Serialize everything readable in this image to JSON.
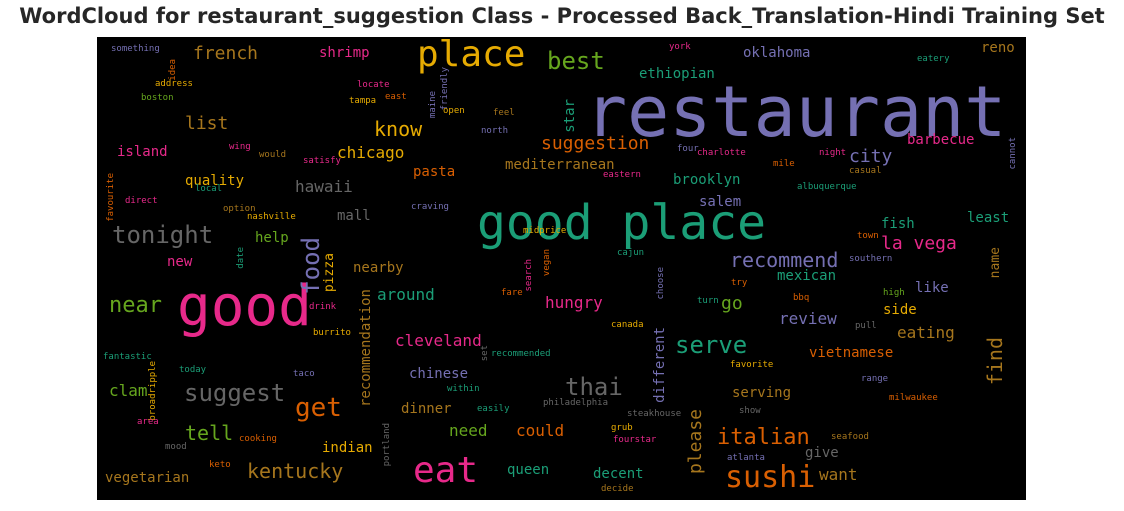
{
  "title": "WordCloud for restaurant_suggestion Class - Processed Back_Translation-Hindi Training Set",
  "colors": {
    "background": "#000000",
    "purple": "#7570b3",
    "teal": "#1b9e77",
    "pink": "#e7298a",
    "orange": "#d95f02",
    "green": "#66a61e",
    "gold": "#e6ab02",
    "brown": "#a6761d",
    "gray": "#666666"
  },
  "words": [
    {
      "id": "restaurant",
      "text": "restaurant",
      "color": "purple"
    },
    {
      "id": "good-place",
      "text": "good place",
      "color": "teal"
    },
    {
      "id": "good",
      "text": "good",
      "color": "pink"
    },
    {
      "id": "place",
      "text": "place",
      "color": "gold"
    },
    {
      "id": "eat",
      "text": "eat",
      "color": "pink"
    },
    {
      "id": "sushi",
      "text": "sushi",
      "color": "orange"
    },
    {
      "id": "food",
      "text": "food",
      "color": "purple"
    },
    {
      "id": "tonight",
      "text": "tonight",
      "color": "gray"
    },
    {
      "id": "suggest",
      "text": "suggest",
      "color": "gray"
    },
    {
      "id": "serve",
      "text": "serve",
      "color": "teal"
    },
    {
      "id": "thai",
      "text": "thai",
      "color": "gray"
    },
    {
      "id": "italian",
      "text": "italian",
      "color": "orange"
    },
    {
      "id": "get",
      "text": "get",
      "color": "orange"
    },
    {
      "id": "best",
      "text": "best",
      "color": "green"
    },
    {
      "id": "recommend",
      "text": "recommend",
      "color": "purple"
    },
    {
      "id": "kentucky",
      "text": "kentucky",
      "color": "brown"
    },
    {
      "id": "near",
      "text": "near",
      "color": "green"
    },
    {
      "id": "know",
      "text": "know",
      "color": "gold"
    },
    {
      "id": "suggestion",
      "text": "suggestion",
      "color": "orange"
    },
    {
      "id": "find",
      "text": "find",
      "color": "brown"
    },
    {
      "id": "please",
      "text": "please",
      "color": "brown"
    },
    {
      "id": "french",
      "text": "french",
      "color": "brown"
    },
    {
      "id": "list",
      "text": "list",
      "color": "brown"
    },
    {
      "id": "chicago",
      "text": "chicago",
      "color": "gold"
    },
    {
      "id": "la-vega",
      "text": "la vega",
      "color": "pink"
    },
    {
      "id": "city",
      "text": "city",
      "color": "purple"
    },
    {
      "id": "cleveland",
      "text": "cleveland",
      "color": "pink"
    },
    {
      "id": "tell",
      "text": "tell",
      "color": "green"
    },
    {
      "id": "hawaii",
      "text": "hawaii",
      "color": "gray"
    },
    {
      "id": "recommendation",
      "text": "recommendation",
      "color": "brown"
    },
    {
      "id": "around",
      "text": "around",
      "color": "teal"
    },
    {
      "id": "hungry",
      "text": "hungry",
      "color": "pink"
    },
    {
      "id": "review",
      "text": "review",
      "color": "purple"
    },
    {
      "id": "eating",
      "text": "eating",
      "color": "brown"
    },
    {
      "id": "go",
      "text": "go",
      "color": "green"
    },
    {
      "id": "want",
      "text": "want",
      "color": "brown"
    },
    {
      "id": "could",
      "text": "could",
      "color": "orange"
    },
    {
      "id": "need",
      "text": "need",
      "color": "green"
    },
    {
      "id": "clam",
      "text": "clam",
      "color": "green"
    },
    {
      "id": "different",
      "text": "different",
      "color": "purple"
    },
    {
      "id": "oklahoma",
      "text": "oklahoma",
      "color": "purple"
    },
    {
      "id": "ethiopian",
      "text": "ethiopian",
      "color": "teal"
    },
    {
      "id": "shrimp",
      "text": "shrimp",
      "color": "pink"
    },
    {
      "id": "reno",
      "text": "reno",
      "color": "brown"
    },
    {
      "id": "barbecue",
      "text": "barbecue",
      "color": "pink"
    },
    {
      "id": "star",
      "text": "star",
      "color": "teal"
    },
    {
      "id": "mediterranean",
      "text": "mediterranean",
      "color": "brown"
    },
    {
      "id": "pasta",
      "text": "pasta",
      "color": "orange"
    },
    {
      "id": "brooklyn",
      "text": "brooklyn",
      "color": "teal"
    },
    {
      "id": "salem",
      "text": "salem",
      "color": "purple"
    },
    {
      "id": "island",
      "text": "island",
      "color": "pink"
    },
    {
      "id": "quality",
      "text": "quality",
      "color": "gold"
    },
    {
      "id": "mall",
      "text": "mall",
      "color": "gray"
    },
    {
      "id": "help",
      "text": "help",
      "color": "green"
    },
    {
      "id": "new",
      "text": "new",
      "color": "pink"
    },
    {
      "id": "pizza",
      "text": "pizza",
      "color": "gold"
    },
    {
      "id": "nearby",
      "text": "nearby",
      "color": "brown"
    },
    {
      "id": "fish",
      "text": "fish",
      "color": "teal"
    },
    {
      "id": "least",
      "text": "least",
      "color": "teal"
    },
    {
      "id": "name",
      "text": "name",
      "color": "brown"
    },
    {
      "id": "mexican",
      "text": "mexican",
      "color": "teal"
    },
    {
      "id": "like",
      "text": "like",
      "color": "purple"
    },
    {
      "id": "side",
      "text": "side",
      "color": "gold"
    },
    {
      "id": "vietnamese",
      "text": "vietnamese",
      "color": "orange"
    },
    {
      "id": "chinese",
      "text": "chinese",
      "color": "purple"
    },
    {
      "id": "dinner",
      "text": "dinner",
      "color": "brown"
    },
    {
      "id": "serving",
      "text": "serving",
      "color": "brown"
    },
    {
      "id": "indian",
      "text": "indian",
      "color": "gold"
    },
    {
      "id": "queen",
      "text": "queen",
      "color": "teal"
    },
    {
      "id": "decent",
      "text": "decent",
      "color": "teal"
    },
    {
      "id": "give",
      "text": "give",
      "color": "gray"
    },
    {
      "id": "vegetarian",
      "text": "vegetarian",
      "color": "brown"
    },
    {
      "id": "something",
      "text": "something",
      "color": "purple"
    },
    {
      "id": "address",
      "text": "address",
      "color": "gold"
    },
    {
      "id": "boston",
      "text": "boston",
      "color": "green"
    },
    {
      "id": "idea",
      "text": "idea",
      "color": "orange"
    },
    {
      "id": "locate",
      "text": "locate",
      "color": "pink"
    },
    {
      "id": "tampa",
      "text": "tampa",
      "color": "gold"
    },
    {
      "id": "east",
      "text": "east",
      "color": "orange"
    },
    {
      "id": "maine",
      "text": "maine",
      "color": "purple"
    },
    {
      "id": "friendly",
      "text": "friendly",
      "color": "purple"
    },
    {
      "id": "open",
      "text": "open",
      "color": "gold"
    },
    {
      "id": "feel",
      "text": "feel",
      "color": "brown"
    },
    {
      "id": "north",
      "text": "north",
      "color": "purple"
    },
    {
      "id": "york",
      "text": "york",
      "color": "pink"
    },
    {
      "id": "eatery",
      "text": "eatery",
      "color": "teal"
    },
    {
      "id": "wing",
      "text": "wing",
      "color": "pink"
    },
    {
      "id": "would",
      "text": "would",
      "color": "brown"
    },
    {
      "id": "satisfy",
      "text": "satisfy",
      "color": "pink"
    },
    {
      "id": "four",
      "text": "four",
      "color": "purple"
    },
    {
      "id": "charlotte",
      "text": "charlotte",
      "color": "pink"
    },
    {
      "id": "mile",
      "text": "mile",
      "color": "orange"
    },
    {
      "id": "night",
      "text": "night",
      "color": "pink"
    },
    {
      "id": "casual",
      "text": "casual",
      "color": "brown"
    },
    {
      "id": "cannot",
      "text": "cannot",
      "color": "purple"
    },
    {
      "id": "local",
      "text": "local",
      "color": "teal"
    },
    {
      "id": "eastern",
      "text": "eastern",
      "color": "pink"
    },
    {
      "id": "albuquerque",
      "text": "albuquerque",
      "color": "teal"
    },
    {
      "id": "favourite",
      "text": "favourite",
      "color": "orange"
    },
    {
      "id": "direct",
      "text": "direct",
      "color": "pink"
    },
    {
      "id": "option",
      "text": "option",
      "color": "brown"
    },
    {
      "id": "nashville",
      "text": "nashville",
      "color": "gold"
    },
    {
      "id": "craving",
      "text": "craving",
      "color": "purple"
    },
    {
      "id": "midprice",
      "text": "midprice",
      "color": "gold"
    },
    {
      "id": "town",
      "text": "town",
      "color": "orange"
    },
    {
      "id": "date",
      "text": "date",
      "color": "teal"
    },
    {
      "id": "cajun",
      "text": "cajun",
      "color": "teal"
    },
    {
      "id": "search",
      "text": "search",
      "color": "pink"
    },
    {
      "id": "vegan",
      "text": "vegan",
      "color": "orange"
    },
    {
      "id": "choose",
      "text": "choose",
      "color": "purple"
    },
    {
      "id": "southern",
      "text": "southern",
      "color": "purple"
    },
    {
      "id": "try",
      "text": "try",
      "color": "orange"
    },
    {
      "id": "drink",
      "text": "drink",
      "color": "pink"
    },
    {
      "id": "fare",
      "text": "fare",
      "color": "orange"
    },
    {
      "id": "bbq",
      "text": "bbq",
      "color": "orange"
    },
    {
      "id": "high",
      "text": "high",
      "color": "green"
    },
    {
      "id": "turn",
      "text": "turn",
      "color": "teal"
    },
    {
      "id": "pull",
      "text": "pull",
      "color": "gray"
    },
    {
      "id": "burrito",
      "text": "burrito",
      "color": "gold"
    },
    {
      "id": "canada",
      "text": "canada",
      "color": "gold"
    },
    {
      "id": "fantastic",
      "text": "fantastic",
      "color": "teal"
    },
    {
      "id": "set",
      "text": "set",
      "color": "gray"
    },
    {
      "id": "recommended",
      "text": "recommended",
      "color": "teal"
    },
    {
      "id": "today",
      "text": "today",
      "color": "teal"
    },
    {
      "id": "taco",
      "text": "taco",
      "color": "purple"
    },
    {
      "id": "favorite",
      "text": "favorite",
      "color": "gold"
    },
    {
      "id": "range",
      "text": "range",
      "color": "purple"
    },
    {
      "id": "broadripple",
      "text": "broadripple",
      "color": "gold"
    },
    {
      "id": "within",
      "text": "within",
      "color": "teal"
    },
    {
      "id": "philadelphia",
      "text": "philadelphia",
      "color": "gray"
    },
    {
      "id": "milwaukee",
      "text": "milwaukee",
      "color": "orange"
    },
    {
      "id": "easily",
      "text": "easily",
      "color": "teal"
    },
    {
      "id": "steakhouse",
      "text": "steakhouse",
      "color": "gray"
    },
    {
      "id": "show",
      "text": "show",
      "color": "gray"
    },
    {
      "id": "area",
      "text": "area",
      "color": "pink"
    },
    {
      "id": "mood",
      "text": "mood",
      "color": "gray"
    },
    {
      "id": "cooking",
      "text": "cooking",
      "color": "orange"
    },
    {
      "id": "portland",
      "text": "portland",
      "color": "gray"
    },
    {
      "id": "grub",
      "text": "grub",
      "color": "gold"
    },
    {
      "id": "fourstar",
      "text": "fourstar",
      "color": "pink"
    },
    {
      "id": "seafood",
      "text": "seafood",
      "color": "brown"
    },
    {
      "id": "atlanta",
      "text": "atlanta",
      "color": "purple"
    },
    {
      "id": "keto",
      "text": "keto",
      "color": "orange"
    },
    {
      "id": "decide",
      "text": "decide",
      "color": "brown"
    }
  ]
}
